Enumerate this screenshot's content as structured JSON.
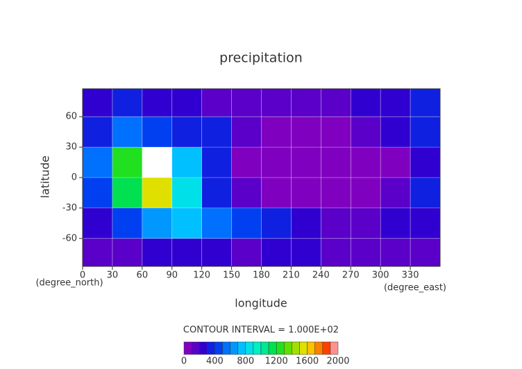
{
  "chart_data": {
    "type": "contour",
    "title": "precipitation",
    "x_label": "longitude",
    "x_unit": "(degree_east)",
    "y_label": "latitude",
    "y_unit": "(degree_north)",
    "note": "CONTOUR INTERVAL = 1.000E+02",
    "xlim": [
      0,
      360
    ],
    "xticks": [
      0,
      30,
      60,
      90,
      120,
      150,
      180,
      210,
      240,
      270,
      300,
      330
    ],
    "ylim": [
      -87.5,
      87.5
    ],
    "yticks": [
      60,
      30,
      0,
      -30,
      -60
    ],
    "grid": true,
    "x": [
      15,
      45,
      75,
      105,
      135,
      165,
      195,
      225,
      255,
      285,
      315,
      345
    ],
    "y": [
      75,
      45,
      15,
      -15,
      -45,
      -75
    ],
    "z": [
      [
        200,
        300,
        250,
        200,
        150,
        100,
        150,
        100,
        150,
        200,
        250,
        300
      ],
      [
        300,
        500,
        400,
        300,
        300,
        100,
        50,
        50,
        50,
        100,
        200,
        300
      ],
      [
        500,
        1200,
        2000,
        700,
        300,
        50,
        0,
        0,
        0,
        0,
        50,
        200
      ],
      [
        400,
        1100,
        1500,
        800,
        300,
        100,
        0,
        0,
        0,
        0,
        100,
        300
      ],
      [
        200,
        400,
        600,
        700,
        500,
        400,
        300,
        200,
        150,
        150,
        200,
        200
      ],
      [
        100,
        150,
        200,
        250,
        200,
        150,
        200,
        200,
        150,
        100,
        100,
        150
      ]
    ],
    "level_colors": [
      "#8000c0",
      "#5a00c8",
      "#3000d0",
      "#1020e0",
      "#0040f0",
      "#0070ff",
      "#0098ff",
      "#00c0ff",
      "#00e0e8",
      "#00f0c0",
      "#00e890",
      "#00e050",
      "#20e020",
      "#60e000",
      "#a0e000",
      "#e0e000",
      "#ffc000",
      "#ff8000",
      "#ff4000",
      "#ff9090"
    ],
    "over_color": "#ffffff",
    "colorbar_lim": [
      0,
      2000
    ],
    "colorbar_ticks": [
      0,
      400,
      800,
      1200,
      1600,
      2000
    ]
  }
}
